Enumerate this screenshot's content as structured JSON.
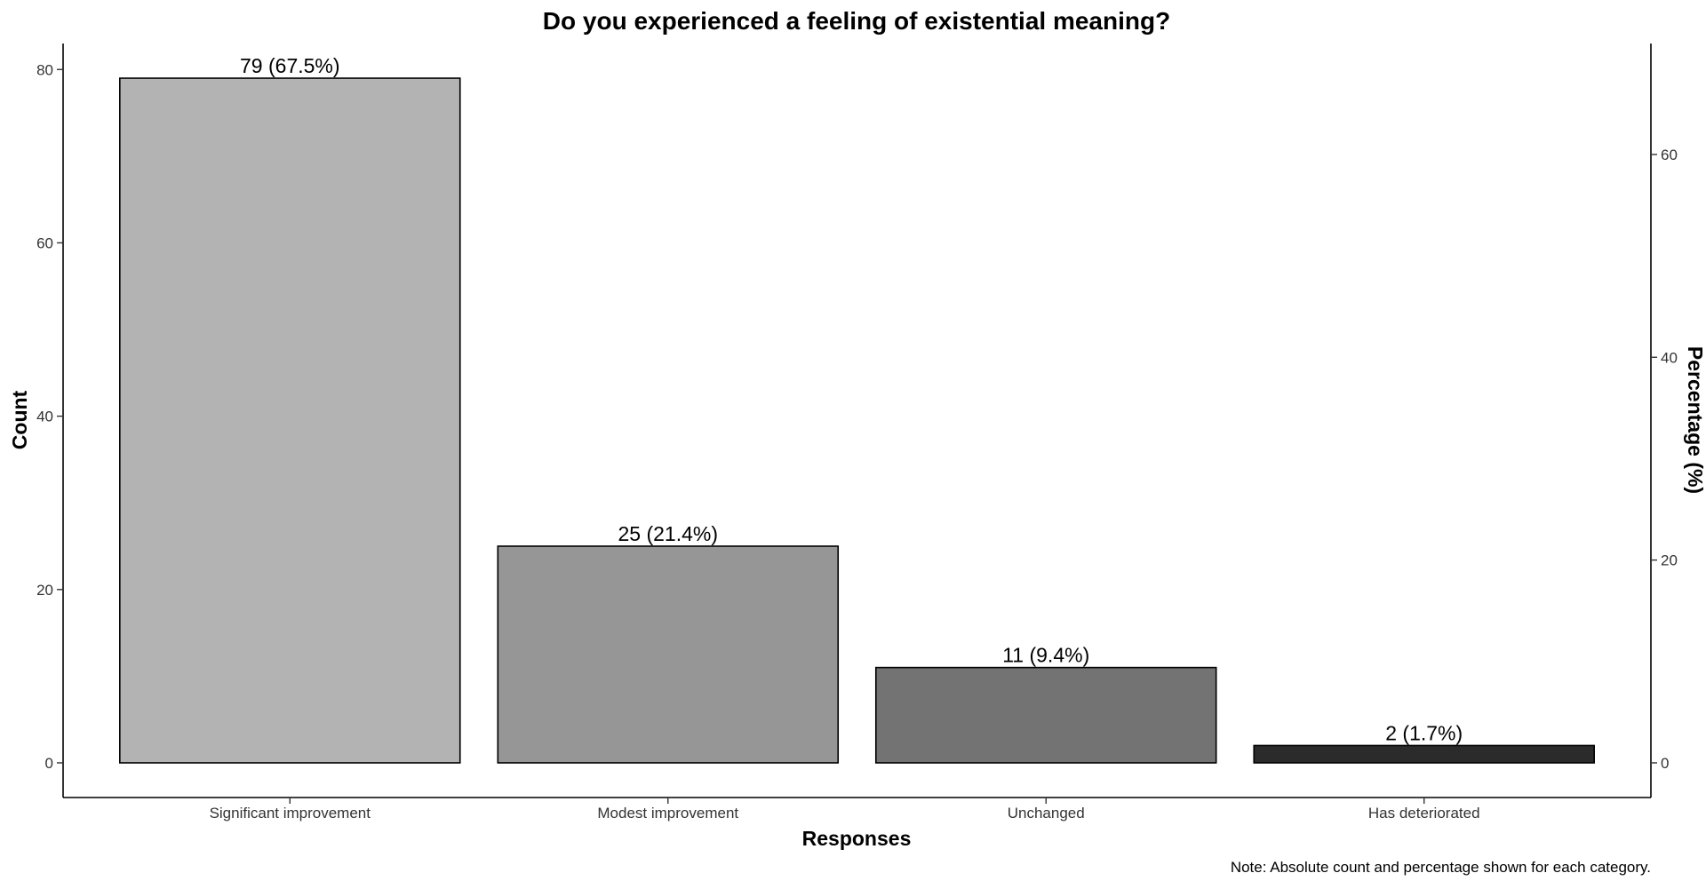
{
  "chart_data": {
    "type": "bar",
    "title": "Do you experienced a feeling of existential meaning?",
    "xlabel": "Responses",
    "ylabel": "Count",
    "ylabel_right": "Percentage (%)",
    "caption": "Note: Absolute count and percentage shown for each category.",
    "categories": [
      "Significant improvement",
      "Modest improvement",
      "Unchanged",
      "Has deteriorated"
    ],
    "values": [
      79,
      25,
      11,
      2
    ],
    "percentages": [
      67.5,
      21.4,
      9.4,
      1.7
    ],
    "data_labels": [
      "79 (67.5%)",
      "25 (21.4%)",
      "11 (9.4%)",
      "2 (1.7%)"
    ],
    "colors": [
      "#b3b3b3",
      "#969696",
      "#737373",
      "#2b2b2b"
    ],
    "ylim": [
      -4,
      83
    ],
    "yticks": [
      0,
      20,
      40,
      60,
      80
    ],
    "ylim_right": [
      0,
      70.9
    ],
    "yticks_right": [
      0,
      20,
      40,
      60
    ],
    "grid": false,
    "legend": "none"
  }
}
